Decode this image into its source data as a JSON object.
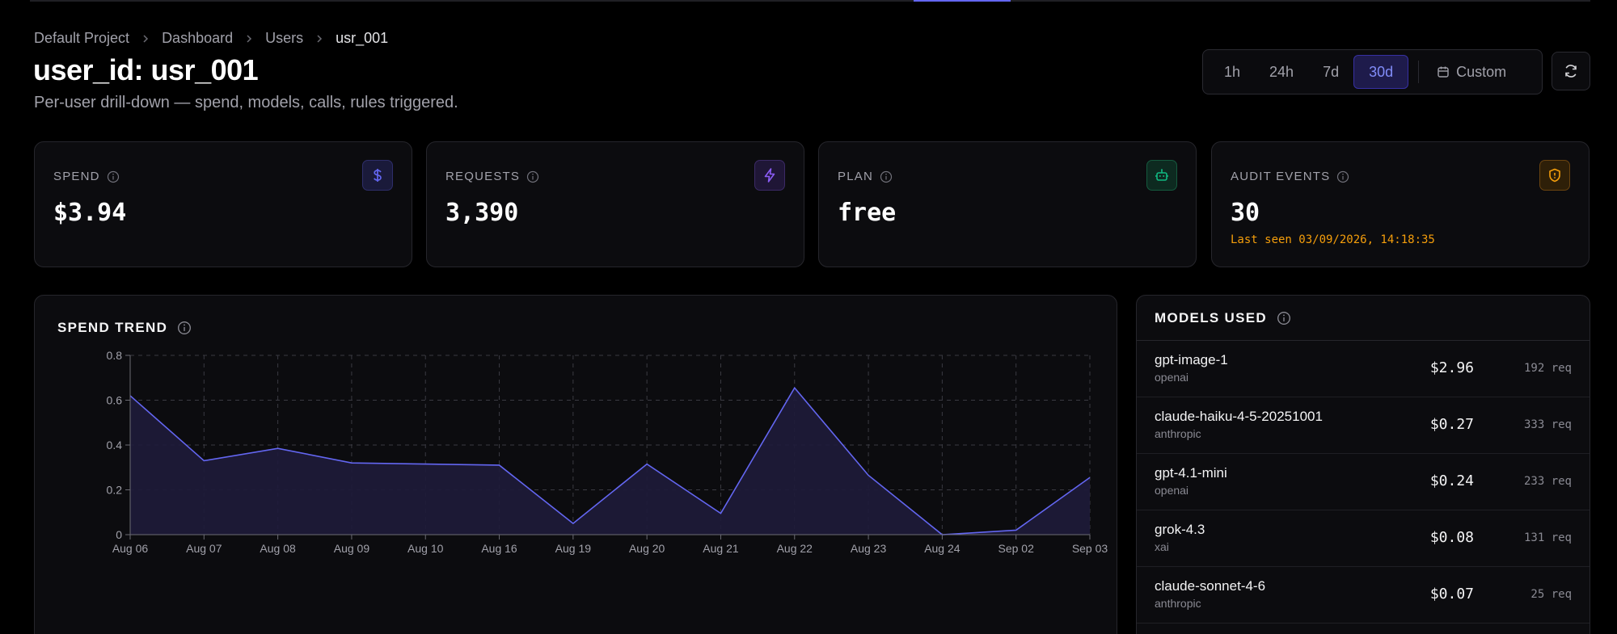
{
  "breadcrumb": [
    "Default Project",
    "Dashboard",
    "Users",
    "usr_001"
  ],
  "page": {
    "title": "user_id: usr_001",
    "subtitle": "Per-user drill-down — spend, models, calls, rules triggered."
  },
  "time_range": {
    "options": [
      "1h",
      "24h",
      "7d",
      "30d"
    ],
    "selected": "30d",
    "custom_label": "Custom"
  },
  "stats": [
    {
      "label": "SPEND",
      "value": "$3.94",
      "icon": "dollar-icon",
      "color": "#6366f1"
    },
    {
      "label": "REQUESTS",
      "value": "3,390",
      "icon": "lightning-icon",
      "color": "#8b5cf6"
    },
    {
      "label": "PLAN",
      "value": "free",
      "icon": "robot-icon",
      "color": "#10b981"
    },
    {
      "label": "AUDIT EVENTS",
      "value": "30",
      "note": "Last seen 03/09/2026, 14:18:35",
      "icon": "shield-icon",
      "color": "#f59e0b"
    }
  ],
  "spend_trend": {
    "title": "SPEND TREND"
  },
  "chart_data": {
    "type": "area",
    "categories": [
      "Aug 06",
      "Aug 07",
      "Aug 08",
      "Aug 09",
      "Aug 10",
      "Aug 16",
      "Aug 19",
      "Aug 20",
      "Aug 21",
      "Aug 22",
      "Aug 23",
      "Aug 24",
      "Sep 02",
      "Sep 03"
    ],
    "values": [
      0.62,
      0.33,
      0.385,
      0.32,
      0.315,
      0.31,
      0.05,
      0.315,
      0.095,
      0.655,
      0.265,
      0.0,
      0.02,
      0.255
    ],
    "ylim": [
      0,
      0.8
    ],
    "yticks": [
      "0",
      "0.2",
      "0.4",
      "0.6",
      "0.8"
    ],
    "grid": true,
    "line_color": "#6366f1",
    "fill_color": "#1e1b3a"
  },
  "models_used": {
    "title": "MODELS USED",
    "items": [
      {
        "name": "gpt-image-1",
        "provider": "openai",
        "cost": "$2.96",
        "requests": "192 req"
      },
      {
        "name": "claude-haiku-4-5-20251001",
        "provider": "anthropic",
        "cost": "$0.27",
        "requests": "333 req"
      },
      {
        "name": "gpt-4.1-mini",
        "provider": "openai",
        "cost": "$0.24",
        "requests": "233 req"
      },
      {
        "name": "grok-4.3",
        "provider": "xai",
        "cost": "$0.08",
        "requests": "131 req"
      },
      {
        "name": "claude-sonnet-4-6",
        "provider": "anthropic",
        "cost": "$0.07",
        "requests": "25 req"
      }
    ]
  }
}
